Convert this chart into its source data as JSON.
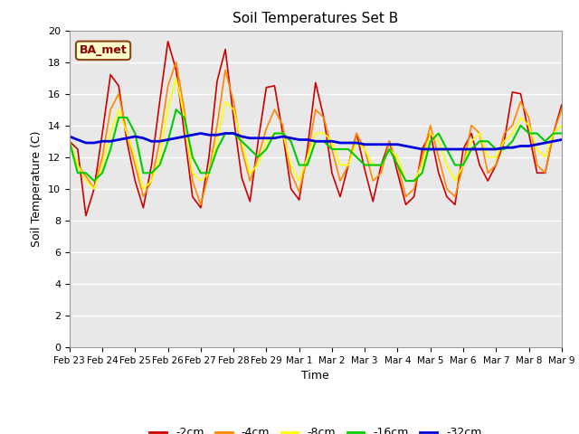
{
  "title": "Soil Temperatures Set B",
  "xlabel": "Time",
  "ylabel": "Soil Temperature (C)",
  "annotation": "BA_met",
  "ylim": [
    0,
    20
  ],
  "yticks": [
    0,
    2,
    4,
    6,
    8,
    10,
    12,
    14,
    16,
    18,
    20
  ],
  "xtick_labels": [
    "Feb 23",
    "Feb 24",
    "Feb 25",
    "Feb 26",
    "Feb 27",
    "Feb 28",
    "Feb 29",
    "Mar 1",
    "Mar 2",
    "Mar 3",
    "Mar 4",
    "Mar 5",
    "Mar 6",
    "Mar 7",
    "Mar 8",
    "Mar 9"
  ],
  "colors": {
    "-2cm": "#cc0000",
    "-4cm": "#ff8800",
    "-8cm": "#ffff00",
    "-16cm": "#00cc00",
    "-32cm": "#0000dd"
  },
  "line_widths": {
    "-2cm": 1.2,
    "-4cm": 1.2,
    "-8cm": 1.2,
    "-16cm": 1.5,
    "-32cm": 2.0
  },
  "background_color": "#ffffff",
  "plot_bg_color": "#e8e8e8",
  "grid_color": "#ffffff",
  "data": {
    "x": [
      0,
      0.25,
      0.5,
      0.75,
      1.0,
      1.25,
      1.5,
      1.75,
      2.0,
      2.25,
      2.5,
      2.75,
      3.0,
      3.25,
      3.5,
      3.75,
      4.0,
      4.25,
      4.5,
      4.75,
      5.0,
      5.25,
      5.5,
      5.75,
      6.0,
      6.25,
      6.5,
      6.75,
      7.0,
      7.25,
      7.5,
      7.75,
      8.0,
      8.25,
      8.5,
      8.75,
      9.0,
      9.25,
      9.5,
      9.75,
      10.0,
      10.25,
      10.5,
      10.75,
      11.0,
      11.25,
      11.5,
      11.75,
      12.0,
      12.25,
      12.5,
      12.75,
      13.0,
      13.25,
      13.5,
      13.75,
      14.0,
      14.25,
      14.5,
      14.75,
      15.0
    ],
    "-2cm": [
      13.0,
      12.5,
      8.3,
      10.0,
      13.5,
      17.2,
      16.5,
      13.0,
      10.5,
      8.8,
      11.5,
      15.5,
      19.3,
      17.5,
      13.5,
      9.5,
      8.8,
      12.0,
      16.8,
      18.8,
      14.5,
      10.7,
      9.2,
      13.0,
      16.4,
      16.5,
      13.5,
      10.0,
      9.3,
      12.5,
      16.7,
      14.5,
      11.0,
      9.5,
      11.5,
      13.5,
      11.2,
      9.2,
      11.5,
      13.0,
      11.0,
      9.0,
      9.5,
      12.5,
      13.5,
      11.0,
      9.5,
      9.0,
      12.5,
      13.5,
      11.5,
      10.5,
      11.5,
      13.0,
      16.1,
      16.0,
      13.5,
      11.0,
      11.0,
      13.5,
      15.3
    ],
    "-4cm": [
      13.0,
      11.5,
      10.8,
      10.0,
      12.0,
      15.0,
      16.0,
      13.5,
      11.5,
      9.5,
      10.5,
      13.0,
      16.5,
      18.0,
      15.0,
      10.5,
      9.0,
      11.0,
      14.0,
      17.5,
      15.5,
      12.5,
      10.5,
      12.0,
      13.8,
      15.0,
      14.0,
      11.0,
      9.8,
      12.0,
      15.0,
      14.5,
      12.5,
      10.5,
      11.5,
      13.5,
      12.5,
      10.5,
      11.0,
      13.0,
      11.5,
      9.5,
      10.0,
      12.0,
      14.0,
      12.0,
      10.0,
      9.5,
      11.5,
      14.0,
      13.5,
      11.0,
      11.5,
      13.5,
      14.0,
      15.5,
      14.5,
      11.5,
      11.0,
      13.5,
      15.0
    ],
    "-8cm": [
      13.0,
      11.5,
      10.5,
      10.0,
      11.5,
      13.5,
      15.0,
      13.5,
      12.0,
      10.0,
      10.5,
      12.0,
      15.0,
      17.0,
      14.5,
      11.0,
      10.5,
      11.0,
      13.0,
      15.5,
      15.0,
      13.0,
      11.0,
      11.5,
      13.0,
      13.5,
      13.5,
      11.5,
      10.5,
      12.0,
      13.5,
      13.5,
      13.0,
      11.5,
      11.5,
      13.0,
      12.5,
      11.5,
      11.5,
      12.5,
      12.0,
      10.5,
      10.5,
      11.5,
      13.5,
      13.0,
      11.5,
      10.5,
      11.5,
      13.0,
      13.5,
      12.0,
      12.0,
      13.0,
      13.5,
      14.5,
      14.0,
      12.5,
      12.0,
      13.5,
      14.0
    ],
    "-16cm": [
      13.0,
      11.0,
      11.0,
      10.5,
      11.0,
      12.5,
      14.5,
      14.5,
      13.5,
      11.0,
      11.0,
      11.5,
      13.0,
      15.0,
      14.5,
      12.0,
      11.0,
      11.0,
      12.5,
      13.5,
      13.5,
      13.0,
      12.5,
      12.0,
      12.5,
      13.5,
      13.5,
      13.0,
      11.5,
      11.5,
      13.0,
      13.0,
      12.5,
      12.5,
      12.5,
      12.0,
      11.5,
      11.5,
      11.5,
      12.5,
      11.5,
      10.5,
      10.5,
      11.0,
      13.0,
      13.5,
      12.5,
      11.5,
      11.5,
      12.5,
      13.0,
      13.0,
      12.5,
      12.5,
      13.0,
      14.0,
      13.5,
      13.5,
      13.0,
      13.5,
      13.5
    ],
    "-32cm": [
      13.3,
      13.1,
      12.9,
      12.9,
      13.0,
      13.0,
      13.1,
      13.2,
      13.3,
      13.2,
      13.0,
      13.0,
      13.1,
      13.2,
      13.3,
      13.4,
      13.5,
      13.4,
      13.4,
      13.5,
      13.5,
      13.3,
      13.2,
      13.2,
      13.2,
      13.2,
      13.3,
      13.2,
      13.1,
      13.1,
      13.0,
      13.0,
      13.0,
      12.9,
      12.9,
      12.9,
      12.8,
      12.8,
      12.8,
      12.8,
      12.8,
      12.7,
      12.6,
      12.5,
      12.5,
      12.5,
      12.5,
      12.5,
      12.5,
      12.5,
      12.5,
      12.5,
      12.5,
      12.6,
      12.6,
      12.7,
      12.7,
      12.8,
      12.9,
      13.0,
      13.1
    ]
  }
}
